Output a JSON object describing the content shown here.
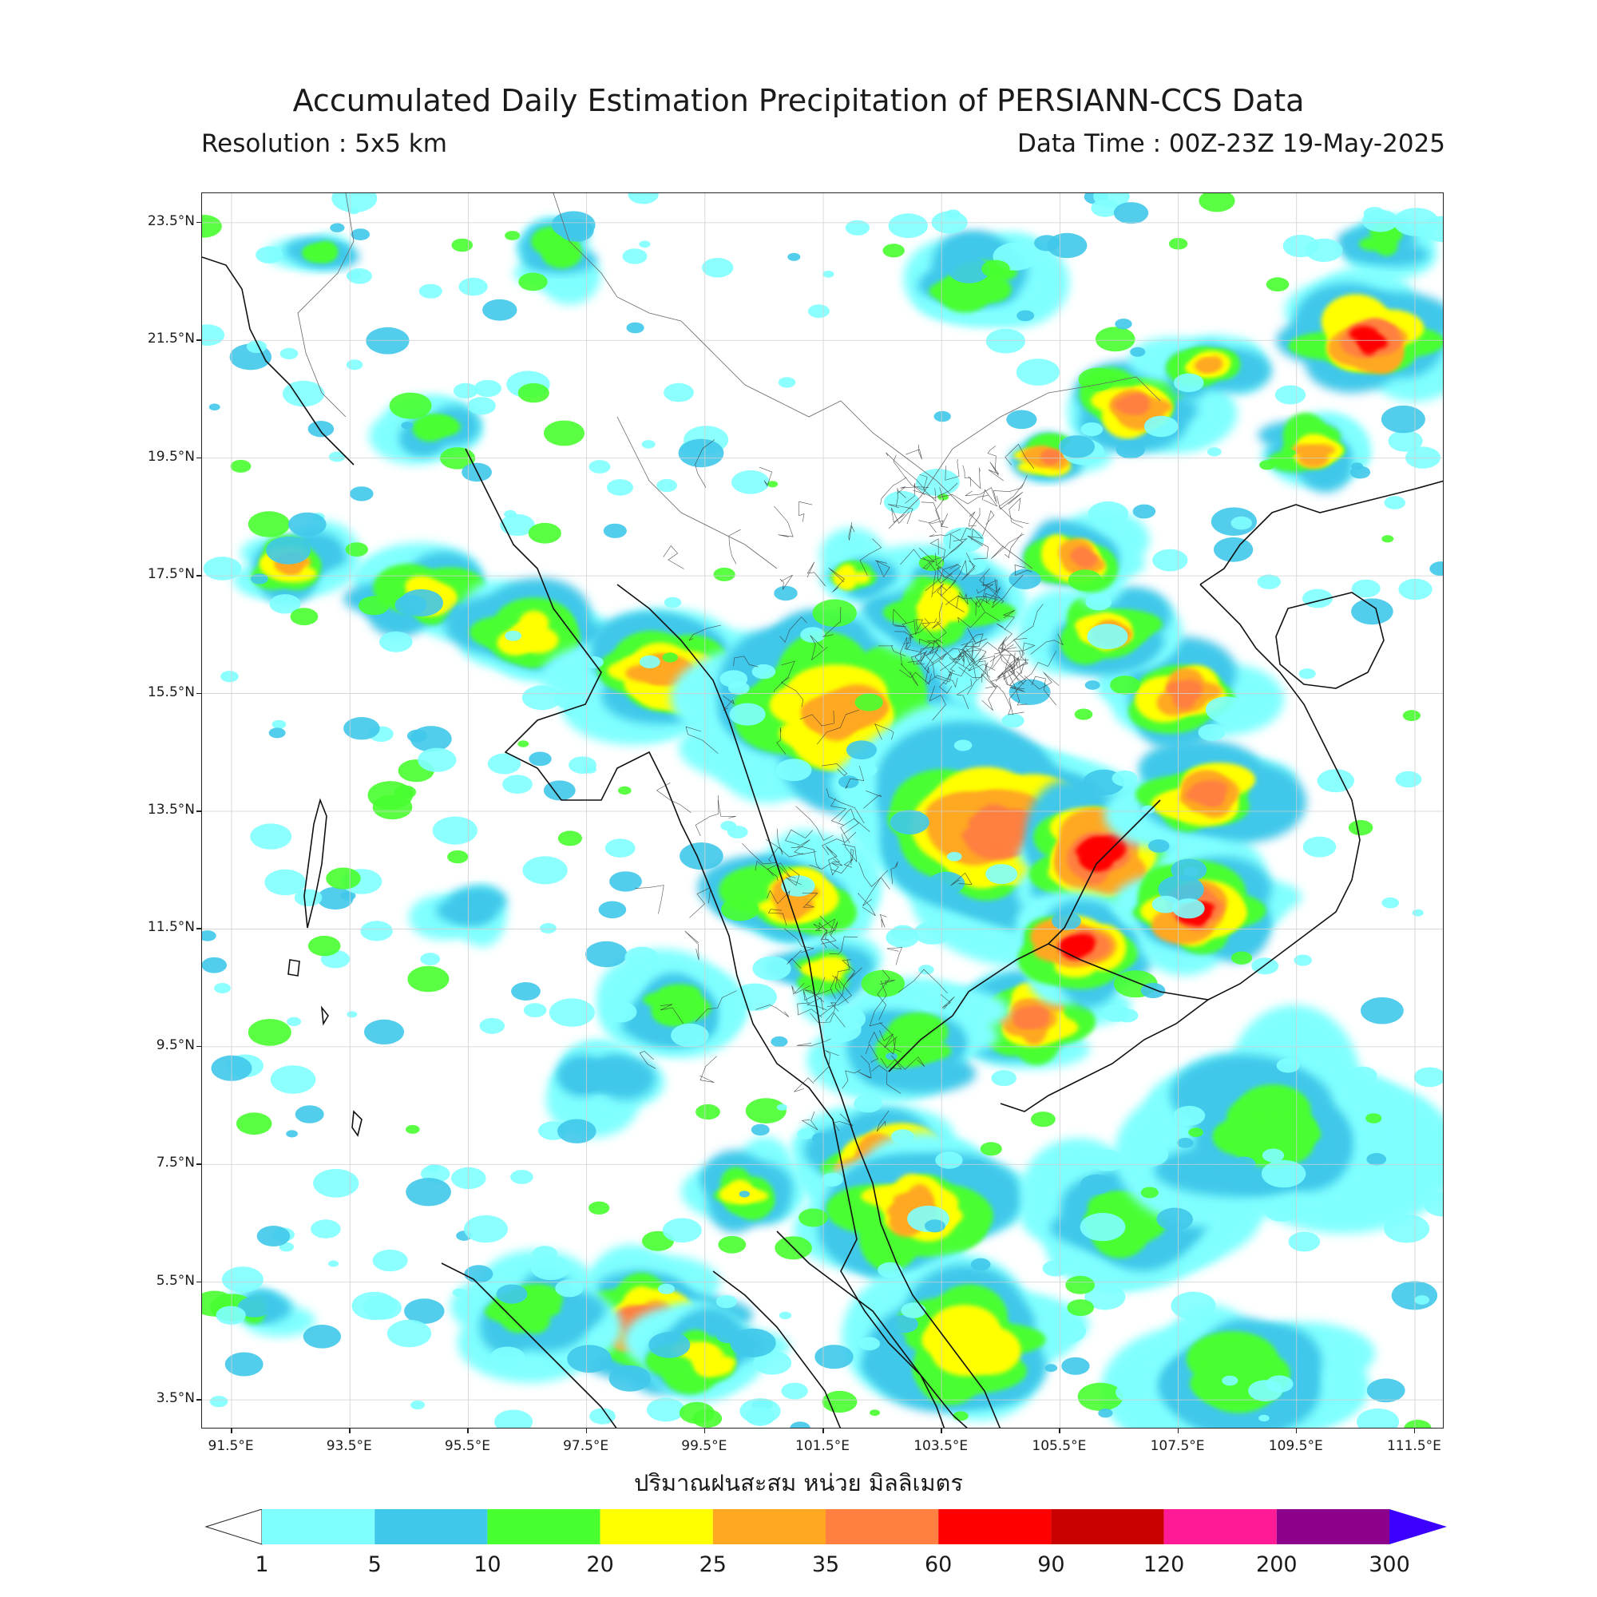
{
  "header": {
    "title": "Accumulated Daily Estimation Precipitation of PERSIANN-CCS Data",
    "resolution": "Resolution : 5x5 km",
    "data_time": "Data Time : 00Z-23Z 19-May-2025"
  },
  "map": {
    "lat_range": [
      3.0,
      24.0
    ],
    "lon_range": [
      91.0,
      112.0
    ],
    "lat_ticks": [
      "23.5°N",
      "21.5°N",
      "19.5°N",
      "17.5°N",
      "15.5°N",
      "13.5°N",
      "11.5°N",
      "9.5°N",
      "7.5°N",
      "5.5°N",
      "3.5°N"
    ],
    "lat_values": [
      23.5,
      21.5,
      19.5,
      17.5,
      15.5,
      13.5,
      11.5,
      9.5,
      7.5,
      5.5,
      3.5
    ],
    "lon_ticks": [
      "91.5°E",
      "93.5°E",
      "95.5°E",
      "97.5°E",
      "99.5°E",
      "101.5°E",
      "103.5°E",
      "105.5°E",
      "107.5°E",
      "109.5°E",
      "111.5°E"
    ],
    "lon_values": [
      91.5,
      93.5,
      95.5,
      97.5,
      99.5,
      101.5,
      103.5,
      105.5,
      107.5,
      109.5,
      111.5
    ]
  },
  "colorbar": {
    "unit_label": "ปริมาณฝนสะสม หน่วย มิลลิเมตร",
    "levels": [
      "1",
      "5",
      "10",
      "20",
      "25",
      "35",
      "60",
      "90",
      "120",
      "200",
      "300"
    ],
    "colors": [
      "#80ffff",
      "#40c8ea",
      "#48ff30",
      "#ffff00",
      "#ffa820",
      "#ff8040",
      "#ff0000",
      "#c80000",
      "#ff1a96",
      "#8c008c"
    ],
    "over_color": "#3c00ff",
    "under_color": "#ffffff"
  }
}
